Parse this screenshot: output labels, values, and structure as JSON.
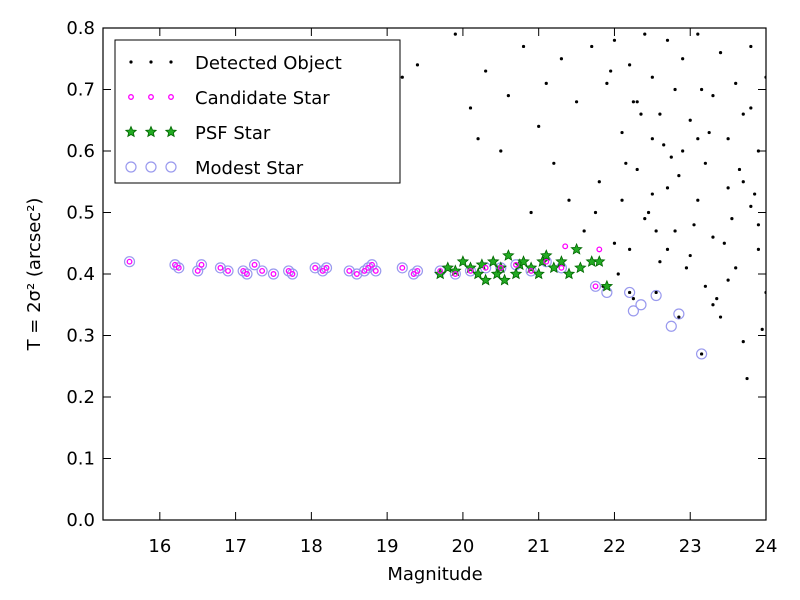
{
  "chart_data": {
    "type": "scatter",
    "xlabel": "Magnitude",
    "ylabel": "T = 2σ² (arcsec²)",
    "xlim": [
      15.25,
      24
    ],
    "ylim": [
      0,
      0.8
    ],
    "xticks": [
      16,
      17,
      18,
      19,
      20,
      21,
      22,
      23,
      24
    ],
    "yticks": [
      {
        "value": 0,
        "label": "0.0"
      },
      0.1,
      0.2,
      0.3,
      0.4,
      0.5,
      0.6,
      0.7,
      0.8
    ],
    "legend": "upper left",
    "series": [
      {
        "name": "Detected Object",
        "color": "#000000",
        "marker": "dot",
        "x": [
          19.2,
          19.4,
          19.9,
          20.1,
          20.2,
          20.3,
          20.5,
          20.6,
          20.8,
          20.9,
          21.0,
          21.1,
          21.2,
          21.3,
          21.4,
          21.5,
          21.6,
          21.7,
          21.8,
          21.9,
          22.0,
          22.0,
          22.1,
          22.1,
          22.2,
          22.2,
          22.3,
          22.3,
          22.4,
          22.4,
          22.5,
          22.5,
          22.6,
          22.6,
          22.7,
          22.7,
          22.8,
          22.8,
          22.9,
          22.9,
          23.0,
          23.0,
          23.1,
          23.1,
          23.2,
          23.2,
          23.3,
          23.3,
          23.4,
          23.4,
          23.5,
          23.5,
          23.6,
          23.6,
          23.7,
          23.7,
          23.8,
          23.8,
          23.9,
          23.9,
          24.0,
          24.0,
          22.15,
          22.45,
          22.65,
          22.85,
          23.05,
          23.25,
          23.45,
          23.65,
          23.85,
          22.35,
          22.55,
          22.75,
          22.95,
          23.15,
          23.35,
          23.55,
          23.75,
          23.95,
          22.05,
          22.25,
          22.5,
          23.1,
          23.5,
          23.7,
          23.9,
          21.75,
          21.95,
          22.7,
          23.3,
          23.8,
          22.2,
          22.25,
          22.55,
          22.85,
          23.15,
          21.85
        ],
        "y": [
          0.72,
          0.74,
          0.79,
          0.67,
          0.62,
          0.73,
          0.6,
          0.69,
          0.77,
          0.5,
          0.64,
          0.71,
          0.58,
          0.75,
          0.52,
          0.68,
          0.47,
          0.77,
          0.55,
          0.71,
          0.78,
          0.45,
          0.63,
          0.52,
          0.74,
          0.44,
          0.68,
          0.57,
          0.79,
          0.49,
          0.62,
          0.72,
          0.42,
          0.66,
          0.78,
          0.54,
          0.47,
          0.7,
          0.6,
          0.75,
          0.43,
          0.65,
          0.52,
          0.79,
          0.38,
          0.58,
          0.69,
          0.46,
          0.76,
          0.33,
          0.62,
          0.54,
          0.71,
          0.41,
          0.29,
          0.66,
          0.51,
          0.77,
          0.44,
          0.6,
          0.37,
          0.72,
          0.58,
          0.5,
          0.61,
          0.56,
          0.48,
          0.63,
          0.45,
          0.57,
          0.53,
          0.66,
          0.47,
          0.59,
          0.41,
          0.7,
          0.36,
          0.49,
          0.23,
          0.31,
          0.4,
          0.68,
          0.53,
          0.62,
          0.39,
          0.55,
          0.48,
          0.5,
          0.73,
          0.44,
          0.35,
          0.67,
          0.37,
          0.36,
          0.37,
          0.33,
          0.27,
          0.38
        ]
      },
      {
        "name": "Candidate Star",
        "color": "#ff00ff",
        "marker": "circle",
        "x": [
          15.6,
          16.2,
          16.25,
          16.5,
          16.55,
          16.8,
          16.9,
          17.1,
          17.15,
          17.25,
          17.35,
          17.5,
          17.7,
          17.75,
          18.05,
          18.15,
          18.2,
          18.5,
          18.6,
          18.7,
          18.75,
          18.8,
          18.85,
          19.2,
          19.35,
          19.4,
          19.7,
          19.9,
          20.1,
          20.3,
          20.5,
          20.7,
          20.9,
          21.1,
          21.3,
          21.35,
          21.75,
          21.8
        ],
        "y": [
          0.42,
          0.415,
          0.41,
          0.405,
          0.415,
          0.41,
          0.405,
          0.405,
          0.4,
          0.415,
          0.405,
          0.4,
          0.405,
          0.4,
          0.41,
          0.405,
          0.41,
          0.405,
          0.4,
          0.405,
          0.41,
          0.415,
          0.405,
          0.41,
          0.4,
          0.405,
          0.405,
          0.4,
          0.405,
          0.41,
          0.41,
          0.415,
          0.405,
          0.42,
          0.41,
          0.445,
          0.38,
          0.44
        ]
      },
      {
        "name": "PSF Star",
        "color": "#2ca02c",
        "marker": "star",
        "x": [
          19.7,
          19.8,
          19.9,
          20.0,
          20.1,
          20.2,
          20.25,
          20.3,
          20.4,
          20.45,
          20.5,
          20.55,
          20.6,
          20.7,
          20.75,
          20.8,
          20.9,
          21.0,
          21.05,
          21.1,
          21.2,
          21.3,
          21.4,
          21.5,
          21.55,
          21.7,
          21.8,
          21.9
        ],
        "y": [
          0.4,
          0.41,
          0.405,
          0.42,
          0.41,
          0.4,
          0.415,
          0.39,
          0.42,
          0.4,
          0.41,
          0.39,
          0.43,
          0.4,
          0.415,
          0.42,
          0.41,
          0.4,
          0.42,
          0.43,
          0.41,
          0.42,
          0.4,
          0.44,
          0.41,
          0.42,
          0.42,
          0.38
        ]
      },
      {
        "name": "Modest Star",
        "color": "#9999ee",
        "marker": "open-circle",
        "x": [
          15.6,
          16.2,
          16.25,
          16.5,
          16.55,
          16.8,
          16.9,
          17.1,
          17.15,
          17.25,
          17.35,
          17.5,
          17.7,
          17.75,
          18.05,
          18.15,
          18.2,
          18.5,
          18.6,
          18.7,
          18.75,
          18.8,
          18.85,
          19.2,
          19.35,
          19.4,
          19.7,
          19.9,
          20.1,
          20.3,
          20.5,
          20.7,
          20.9,
          21.1,
          21.3,
          21.75,
          21.9,
          22.2,
          22.25,
          22.35,
          22.55,
          22.75,
          22.85,
          23.15
        ],
        "y": [
          0.42,
          0.415,
          0.41,
          0.405,
          0.415,
          0.41,
          0.405,
          0.405,
          0.4,
          0.415,
          0.405,
          0.4,
          0.405,
          0.4,
          0.41,
          0.405,
          0.41,
          0.405,
          0.4,
          0.405,
          0.41,
          0.415,
          0.405,
          0.41,
          0.4,
          0.405,
          0.405,
          0.4,
          0.405,
          0.41,
          0.41,
          0.415,
          0.405,
          0.42,
          0.41,
          0.38,
          0.37,
          0.37,
          0.34,
          0.35,
          0.365,
          0.315,
          0.335,
          0.27
        ]
      }
    ]
  }
}
